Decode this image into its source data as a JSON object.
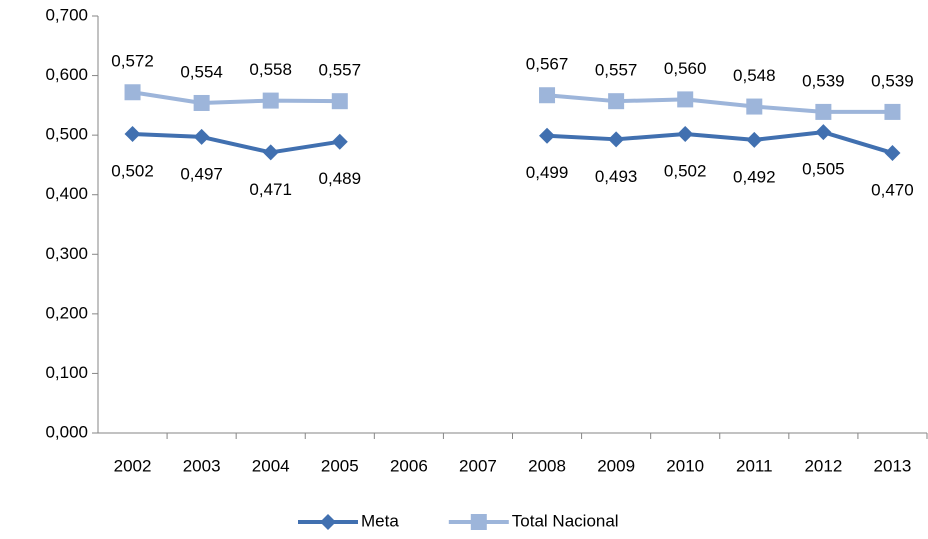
{
  "chart_data": {
    "type": "line",
    "categories": [
      "2002",
      "2003",
      "2004",
      "2005",
      "2006",
      "2007",
      "2008",
      "2009",
      "2010",
      "2011",
      "2012",
      "2013"
    ],
    "series": [
      {
        "name": "Meta",
        "color": "#4170b0",
        "marker": "diamond",
        "values": [
          0.502,
          0.497,
          0.471,
          0.489,
          null,
          null,
          0.499,
          0.493,
          0.502,
          0.492,
          0.505,
          0.47
        ],
        "value_labels": [
          "0,502",
          "0,497",
          "0,471",
          "0,489",
          null,
          null,
          "0,499",
          "0,493",
          "0,502",
          "0,492",
          "0,505",
          "0,470"
        ]
      },
      {
        "name": "Total Nacional",
        "color": "#9db5da",
        "marker": "square",
        "values": [
          0.572,
          0.554,
          0.558,
          0.557,
          null,
          null,
          0.567,
          0.557,
          0.56,
          0.548,
          0.539,
          0.539
        ],
        "value_labels": [
          "0,572",
          "0,554",
          "0,558",
          "0,557",
          null,
          null,
          "0,567",
          "0,557",
          "0,560",
          "0,548",
          "0,539",
          "0,539"
        ]
      }
    ],
    "ylim": [
      0,
      0.7
    ],
    "yticks": [
      {
        "value": 0,
        "label": "0,000"
      },
      {
        "value": 0.1,
        "label": "0,100"
      },
      {
        "value": 0.2,
        "label": "0,200"
      },
      {
        "value": 0.3,
        "label": "0,300"
      },
      {
        "value": 0.4,
        "label": "0,400"
      },
      {
        "value": 0.5,
        "label": "0,500"
      },
      {
        "value": 0.6,
        "label": "0,600"
      },
      {
        "value": 0.7,
        "label": "0,700"
      }
    ],
    "grid": false,
    "legend": "bottom"
  }
}
